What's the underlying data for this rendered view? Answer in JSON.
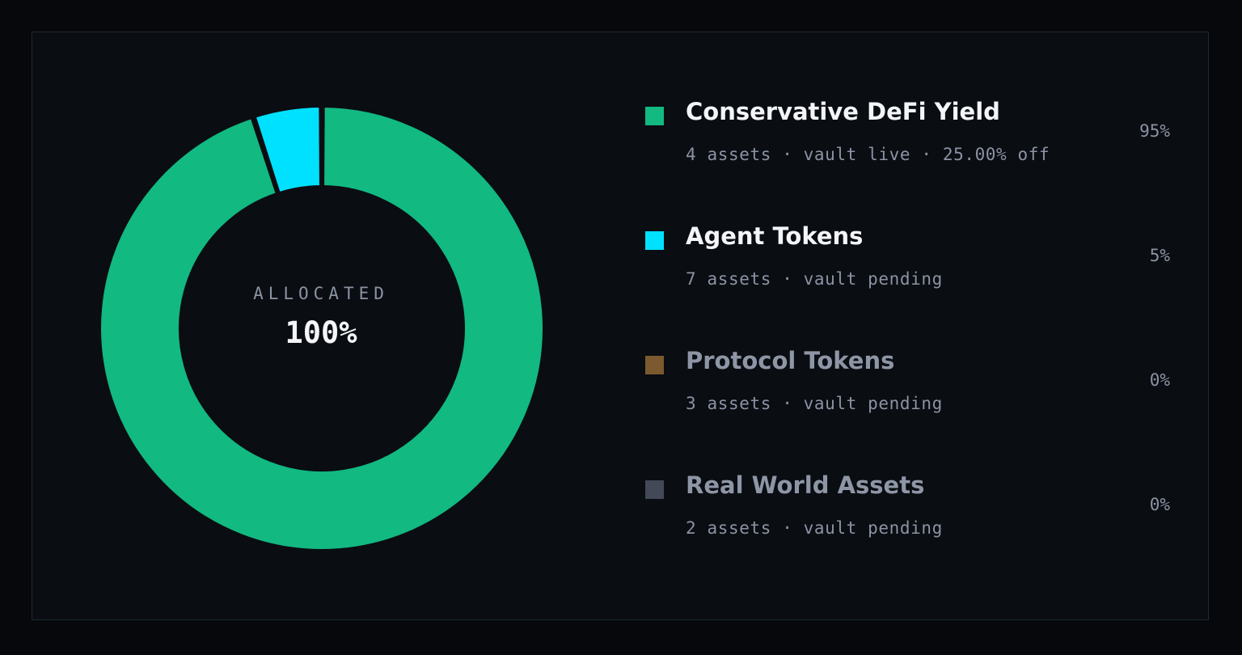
{
  "center": {
    "label": "ALLOCATED",
    "value": "100%"
  },
  "chart_data": {
    "type": "pie",
    "variant": "donut",
    "categories": [
      "Conservative DeFi Yield",
      "Agent Tokens",
      "Protocol Tokens",
      "Real World Assets"
    ],
    "values": [
      95,
      5,
      0,
      0
    ],
    "unit": "%",
    "colors": [
      "#12b981",
      "#00e1ff",
      "#7a5a2e",
      "#434956"
    ],
    "legend_position": "right"
  },
  "legend": [
    {
      "name": "Conservative DeFi Yield",
      "meta": "4 assets · vault live · 25.00% off",
      "percent": "95%",
      "color": "#12b981",
      "active": true
    },
    {
      "name": "Agent Tokens",
      "meta": "7 assets · vault pending",
      "percent": "5%",
      "color": "#00e1ff",
      "active": true
    },
    {
      "name": "Protocol Tokens",
      "meta": "3 assets · vault pending",
      "percent": "0%",
      "color": "#7a5a2e",
      "active": false
    },
    {
      "name": "Real World Assets",
      "meta": "2 assets · vault pending",
      "percent": "0%",
      "color": "#434956",
      "active": false
    }
  ]
}
